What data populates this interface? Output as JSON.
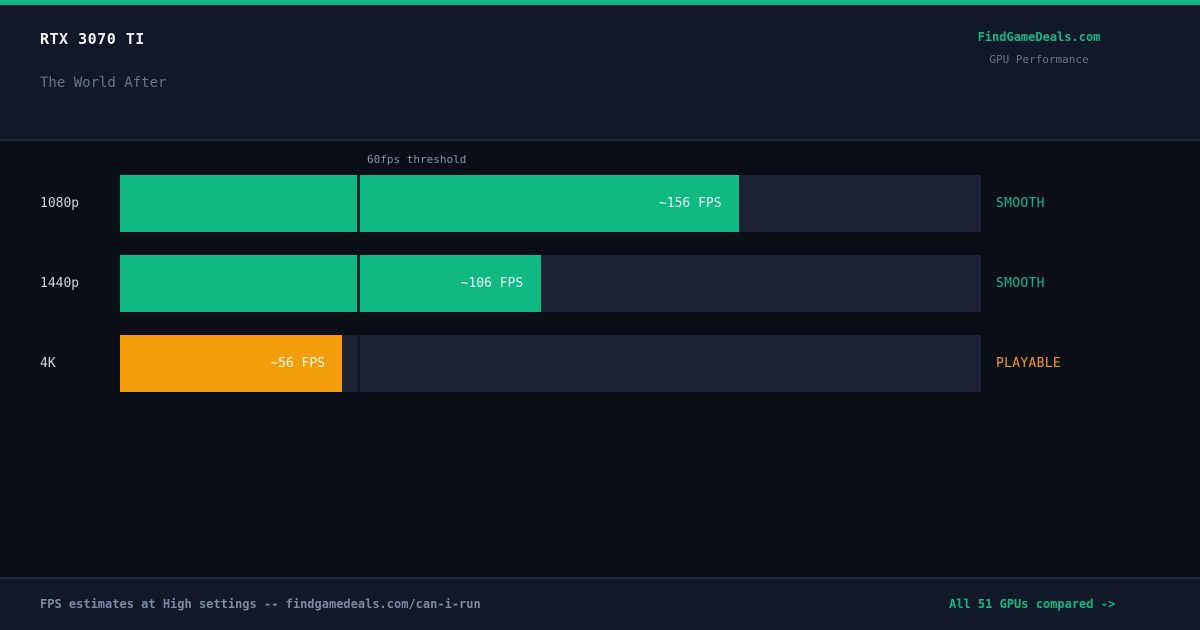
{
  "header": {
    "gpu": "RTX 3070 TI",
    "game": "The World After",
    "brand": "FindGameDeals.com",
    "brand_subtitle": "GPU Performance"
  },
  "footer": {
    "note": "FPS estimates at High settings -- findgamedeals.com/can-i-run",
    "link": "All 51 GPUs compared ->"
  },
  "colors": {
    "accent": "#10b981",
    "smooth": "#10b981",
    "playable": "#f59e0b",
    "track": "#1a2233"
  },
  "chart_data": {
    "type": "bar",
    "orientation": "horizontal",
    "categories": [
      "1080p",
      "1440p",
      "4K"
    ],
    "values": [
      156,
      106,
      56
    ],
    "value_labels": [
      "~156 FPS",
      "~106 FPS",
      "~56 FPS"
    ],
    "status": [
      "SMOOTH",
      "SMOOTH",
      "PLAYABLE"
    ],
    "xlim": [
      0,
      217
    ],
    "threshold": {
      "value": 60,
      "label": "60fps threshold"
    }
  }
}
